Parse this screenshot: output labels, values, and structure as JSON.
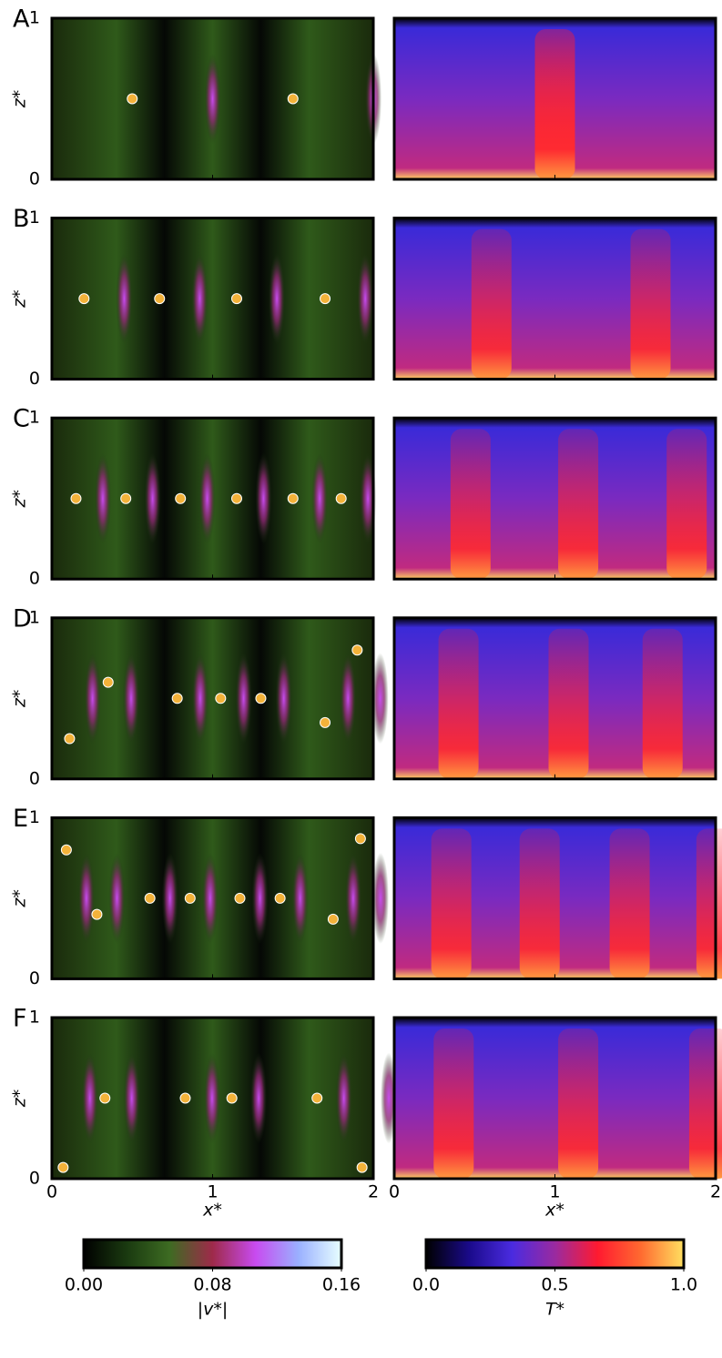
{
  "panels": [
    {
      "label": "A",
      "dots": {
        "x": [
          0.5,
          1.5
        ],
        "z": [
          0.5,
          0.5
        ]
      }
    },
    {
      "label": "B",
      "dots": {
        "x": [
          0.2,
          0.67,
          1.15,
          1.7
        ],
        "z": [
          0.5,
          0.5,
          0.5,
          0.5
        ]
      }
    },
    {
      "label": "C",
      "dots": {
        "x": [
          0.15,
          0.46,
          0.8,
          1.15,
          1.5,
          1.8
        ],
        "z": [
          0.5,
          0.5,
          0.5,
          0.5,
          0.5,
          0.5
        ]
      }
    },
    {
      "label": "D",
      "dots": {
        "x": [
          0.11,
          0.35,
          0.78,
          1.05,
          1.3,
          1.7,
          1.9
        ],
        "z": [
          0.25,
          0.6,
          0.5,
          0.5,
          0.5,
          0.35,
          0.8
        ]
      }
    },
    {
      "label": "E",
      "dots": {
        "x": [
          0.09,
          0.28,
          0.61,
          0.86,
          1.17,
          1.42,
          1.75,
          1.92
        ],
        "z": [
          0.8,
          0.4,
          0.5,
          0.5,
          0.5,
          0.5,
          0.37,
          0.87
        ]
      }
    },
    {
      "label": "F",
      "dots": {
        "x": [
          0.07,
          0.33,
          0.83,
          1.12,
          1.65,
          1.93
        ],
        "z": [
          0.07,
          0.5,
          0.5,
          0.5,
          0.5,
          0.07
        ]
      }
    }
  ],
  "x_label": "x*",
  "z_label": "z*",
  "xlim": [
    0,
    2
  ],
  "xticks": [
    0,
    1,
    2
  ],
  "zlim": [
    0,
    1
  ],
  "zticks": [
    0,
    1
  ],
  "speed_colorbar": {
    "label": "|v*|",
    "lim": [
      0,
      0.16
    ],
    "ticks": [
      {
        "value": 0,
        "label": "0.00"
      },
      {
        "value": 0.08,
        "label": "0.08"
      },
      {
        "value": 0.16,
        "label": "0.16"
      }
    ],
    "colors": [
      "#000000",
      "#1a3a10",
      "#3d6b22",
      "#9e2a4a",
      "#c84bf0",
      "#9ab0ff",
      "#e8ffff"
    ]
  },
  "temperature_colorbar": {
    "label": "T*",
    "lim": [
      0,
      1
    ],
    "ticks": [
      {
        "value": 0,
        "label": "0.0"
      },
      {
        "value": 0.5,
        "label": "0.5"
      },
      {
        "value": 1,
        "label": "1.0"
      }
    ],
    "colors": [
      "#000000",
      "#1a0a8a",
      "#4a2be0",
      "#9a2aa0",
      "#ff1a30",
      "#ff6a30",
      "#ffe060"
    ]
  },
  "dot_color": "#f3b23a"
}
